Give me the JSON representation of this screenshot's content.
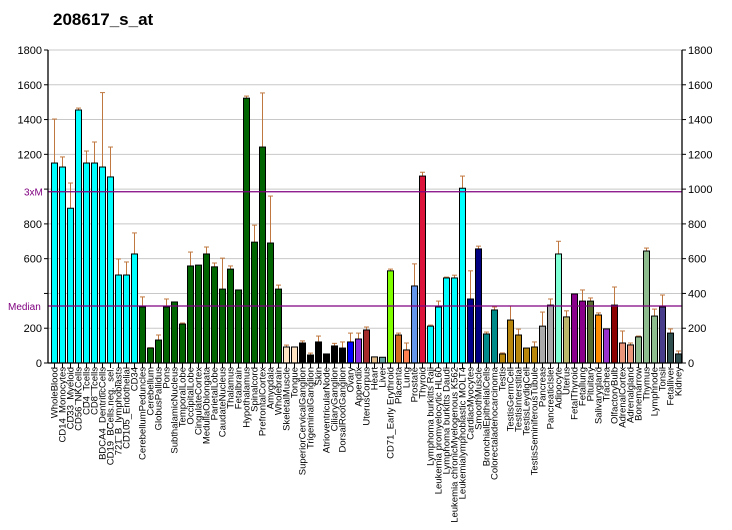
{
  "chart_data": {
    "type": "bar",
    "title": "208617_s_at",
    "xlabel": "",
    "ylabel": "",
    "ylim": [
      0,
      1800
    ],
    "yticks": [
      0,
      200,
      400,
      600,
      800,
      1000,
      1200,
      1400,
      1600,
      1800
    ],
    "grid": true,
    "reference_lines": [
      {
        "label": "3xM",
        "value": 985,
        "color": "#800080"
      },
      {
        "label": "Median",
        "value": 328,
        "color": "#800080"
      }
    ],
    "categories": [
      "WholeBlood",
      "CD14_Monocytes",
      "CD33_Myeloid",
      "CD56_NKCells",
      "CD4_Tcells",
      "CD8_Tcells",
      "BDCA4_DentriticCells",
      "CD19_BCells.neg._sel.",
      "721_B_lymphoblasts",
      "CD105_Endothelial",
      "CD34",
      "CerebellumPeduncles",
      "Cerebellum",
      "GlobusPallidus",
      "Pons",
      "SubthalamicNucleus",
      "TemporalLobe",
      "OccipitalLobe",
      "CingulateCortex",
      "MedullaOblongata",
      "ParietalLobe",
      "CaudateNucleus",
      "Thalamus",
      "Fetalbrain",
      "Hypothalamus",
      "Spinalcord",
      "PrefrontalCortex",
      "Amygdala",
      "Wholebrain",
      "SkeletalMuscle",
      "Tongue",
      "SuperiorCervicalGanglion",
      "TrigeminalGanglion",
      "Skin",
      "AtrioventricularNode",
      "CiliaryGanglion",
      "DorsalRootGanglion",
      "Ovary",
      "Appendix",
      "UterusCorpus",
      "Heart",
      "Liver",
      "CD71_Early Erythroid",
      "Placenta",
      "Lung",
      "Prostate",
      "Thyroid",
      "Lymphoma burkitts Raji",
      "Leukemia promyelocytic HL60",
      "Lymphoma burkitts Daudi",
      "Leukemia chronicMyelogenous K562",
      "Leukemialymphoblastic MOLT4",
      "CardiacMyocytes",
      "SmoothMuscle",
      "BronchialEpithelialCells",
      "Colorectaladenocarcinoma",
      "Testis",
      "TestisGermCell",
      "TestisInterstitial",
      "TestisLeydigCell",
      "TestisSeminiferousTubule",
      "Pancreas",
      "PancreaticIslet",
      "Adipocyte",
      "Uterus",
      "FetalThyroid",
      "Fetallung",
      "Pituitary",
      "Salivarygland",
      "Trachea",
      "OlfactoryBulb",
      "AdrenalCortex",
      "Adrenalgland",
      "Bonemarrow",
      "Thymus",
      "Lymphnode",
      "Tonsil",
      "Fetalliver",
      "Kidney"
    ],
    "values": [
      1150,
      1127,
      890,
      1455,
      1150,
      1150,
      1127,
      1070,
      506,
      506,
      627,
      322,
      86,
      132,
      322,
      351,
      224,
      558,
      563,
      627,
      553,
      425,
      540,
      420,
      1523,
      695,
      1242,
      690,
      425,
      92,
      92,
      115,
      46,
      121,
      52,
      98,
      86,
      121,
      138,
      190,
      35,
      33,
      530,
      161,
      75,
      443,
      1075,
      212,
      322,
      489,
      489,
      1005,
      368,
      656,
      167,
      305,
      52,
      247,
      161,
      86,
      92,
      212,
      333,
      627,
      265,
      397,
      356,
      356,
      276,
      196,
      333,
      115,
      104,
      150,
      644,
      270,
      322,
      172,
      52
    ],
    "error_upper": [
      1403,
      1185,
      1035,
      1466,
      1219,
      1271,
      1555,
      1242,
      598,
      581,
      748,
      380,
      88,
      161,
      368,
      351,
      230,
      638,
      563,
      667,
      575,
      603,
      558,
      420,
      1535,
      793,
      1553,
      960,
      448,
      103,
      92,
      127,
      57,
      155,
      52,
      113,
      121,
      172,
      172,
      207,
      35,
      33,
      540,
      172,
      115,
      570,
      1097,
      218,
      356,
      494,
      505,
      1075,
      530,
      672,
      178,
      322,
      58,
      328,
      195,
      86,
      121,
      293,
      368,
      700,
      300,
      397,
      420,
      374,
      288,
      196,
      437,
      184,
      115,
      155,
      661,
      310,
      391,
      196,
      69
    ],
    "colors": [
      "#00FFFF",
      "#00FFFF",
      "#00FFFF",
      "#00FFFF",
      "#00FFFF",
      "#00FFFF",
      "#00FFFF",
      "#00FFFF",
      "#00FFFF",
      "#00FFFF",
      "#00FFFF",
      "#006400",
      "#006400",
      "#006400",
      "#006400",
      "#006400",
      "#006400",
      "#006400",
      "#006400",
      "#006400",
      "#006400",
      "#006400",
      "#006400",
      "#006400",
      "#006400",
      "#006400",
      "#006400",
      "#006400",
      "#006400",
      "#FFE4C4",
      "#FFE4C4",
      "#000000",
      "#000000",
      "#000000",
      "#000000",
      "#000000",
      "#000000",
      "#0000FF",
      "#8A2BE2",
      "#A52A2A",
      "#DEB887",
      "#5F9EA0",
      "#7FFF00",
      "#D2691E",
      "#FF7F50",
      "#6495ED",
      "#DC143C",
      "#00FFFF",
      "#00FFFF",
      "#00FFFF",
      "#00FFFF",
      "#00FFFF",
      "#00008B",
      "#000080",
      "#008B8B",
      "#008B8B",
      "#B8860B",
      "#B8860B",
      "#B8860B",
      "#B8860B",
      "#B8860B",
      "#A9A9A9",
      "#A9A9A9",
      "#7FFFD4",
      "#BDB76B",
      "#8B008B",
      "#8B008B",
      "#556B2F",
      "#FF8C00",
      "#9932CC",
      "#8B0000",
      "#E9967A",
      "#E9967A",
      "#8FBC8F",
      "#8FBC8F",
      "#8FBC8F",
      "#483D8B",
      "#2F4F4F",
      "#2F4F4F"
    ]
  }
}
